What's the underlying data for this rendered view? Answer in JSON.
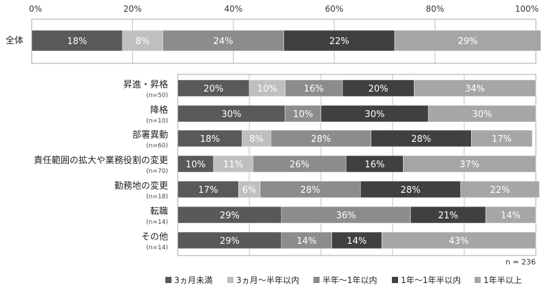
{
  "chart_data": {
    "type": "bar",
    "orientation": "horizontal",
    "stacked": true,
    "percent_stacked": true,
    "x_ticks": [
      "0%",
      "20%",
      "40%",
      "60%",
      "80%",
      "100%"
    ],
    "xlim": [
      0,
      100
    ],
    "grid": true,
    "legend_position": "bottom",
    "note": "n = 236",
    "series": [
      {
        "name": "3ヵ月未満",
        "color": "#595959"
      },
      {
        "name": "3ヵ月～半年以内",
        "color": "#bfbfbf"
      },
      {
        "name": "半年～1年以内",
        "color": "#8c8c8c"
      },
      {
        "name": "1年～1年半以内",
        "color": "#404040"
      },
      {
        "name": "1年半以上",
        "color": "#a6a6a6"
      }
    ],
    "groups": [
      {
        "rows": [
          {
            "label": "全体",
            "sublabel": "",
            "values": [
              18,
              8,
              24,
              22,
              29
            ]
          }
        ]
      },
      {
        "rows": [
          {
            "label": "昇進・昇格",
            "sublabel": "(n=50)",
            "values": [
              20,
              10,
              16,
              20,
              34
            ]
          },
          {
            "label": "降格",
            "sublabel": "(n=10)",
            "values": [
              30,
              0,
              10,
              30,
              30
            ]
          },
          {
            "label": "部署異動",
            "sublabel": "(n=60)",
            "values": [
              18,
              8,
              28,
              28,
              17
            ]
          },
          {
            "label": "責任範囲の拡大や業務役割の変更",
            "sublabel": "(n=70)",
            "values": [
              10,
              11,
              26,
              16,
              37
            ]
          },
          {
            "label": "勤務地の変更",
            "sublabel": "(n=18)",
            "values": [
              17,
              6,
              28,
              28,
              22
            ]
          },
          {
            "label": "転職",
            "sublabel": "(n=14)",
            "values": [
              29,
              0,
              36,
              21,
              14
            ]
          },
          {
            "label": "その他",
            "sublabel": "(n=14)",
            "values": [
              29,
              0,
              14,
              14,
              43
            ]
          }
        ]
      }
    ]
  }
}
